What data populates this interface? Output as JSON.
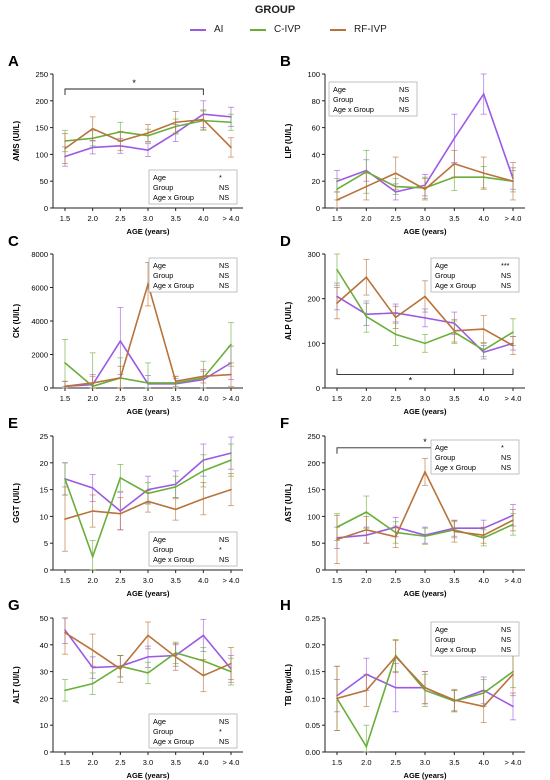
{
  "legend": {
    "title": "GROUP",
    "items": [
      {
        "label": "AI",
        "color": "#9b59e6"
      },
      {
        "label": "C-IVP",
        "color": "#6aae3a"
      },
      {
        "label": "RF-IVP",
        "color": "#b8733a"
      }
    ]
  },
  "chart_data": [
    {
      "panel": "A",
      "type": "line",
      "title": "",
      "xlabel": "AGE (years)",
      "ylabel": "AMS (UI/L)",
      "categories": [
        "1.5",
        "2.0",
        "2.5",
        "3.0",
        "3.5",
        "4.0",
        "> 4.0"
      ],
      "ylim": [
        0,
        250
      ],
      "yticks": [
        0,
        50,
        100,
        150,
        200,
        250
      ],
      "series": [
        {
          "name": "AI",
          "values": [
            96,
            113,
            116,
            108,
            140,
            175,
            170
          ],
          "err": [
            18,
            12,
            14,
            12,
            16,
            25,
            18
          ]
        },
        {
          "name": "C-IVP",
          "values": [
            125,
            130,
            142,
            135,
            152,
            163,
            160
          ],
          "err": [
            20,
            14,
            18,
            12,
            14,
            18,
            15
          ]
        },
        {
          "name": "RF-IVP",
          "values": [
            111,
            148,
            125,
            140,
            160,
            165,
            113
          ],
          "err": [
            28,
            22,
            18,
            16,
            20,
            18,
            18
          ]
        }
      ],
      "stats": [
        {
          "label": "Age",
          "value": "*"
        },
        {
          "label": "Group",
          "value": "NS"
        },
        {
          "label": "Age x Group",
          "value": "NS"
        }
      ],
      "stats_pos": "bottom-right",
      "brackets": [
        {
          "from": "1.5",
          "to": "4.0",
          "y": 222,
          "label": "*"
        }
      ]
    },
    {
      "panel": "B",
      "type": "line",
      "title": "",
      "xlabel": "AGE (years)",
      "ylabel": "LIP (UI/L)",
      "categories": [
        "1.5",
        "2.0",
        "2.5",
        "3.0",
        "3.5",
        "4.0",
        "> 4.0"
      ],
      "ylim": [
        0,
        100
      ],
      "yticks": [
        0,
        20,
        40,
        60,
        80,
        100
      ],
      "series": [
        {
          "name": "AI",
          "values": [
            20,
            28,
            12,
            17,
            52,
            85,
            22
          ],
          "err": [
            8,
            8,
            6,
            8,
            18,
            15,
            8
          ]
        },
        {
          "name": "C-IVP",
          "values": [
            14,
            27,
            16,
            15,
            23,
            23,
            20
          ],
          "err": [
            8,
            16,
            6,
            8,
            10,
            8,
            8
          ]
        },
        {
          "name": "RF-IVP",
          "values": [
            6,
            16,
            26,
            14,
            33,
            26,
            20
          ],
          "err": [
            6,
            10,
            12,
            8,
            10,
            12,
            14
          ]
        }
      ],
      "stats": [
        {
          "label": "Age",
          "value": "NS"
        },
        {
          "label": "Group",
          "value": "NS"
        },
        {
          "label": "Age x Group",
          "value": "NS"
        }
      ],
      "stats_pos": "top-left",
      "brackets": []
    },
    {
      "panel": "C",
      "type": "line",
      "title": "",
      "xlabel": "AGE (years)",
      "ylabel": "CK (UI/L)",
      "categories": [
        "1.5",
        "2.0",
        "2.5",
        "3.0",
        "3.5",
        "4.0",
        "> 4.0"
      ],
      "ylim": [
        0,
        8000
      ],
      "yticks": [
        0,
        2000,
        4000,
        6000,
        8000
      ],
      "series": [
        {
          "name": "AI",
          "values": [
            100,
            200,
            2800,
            250,
            250,
            500,
            1500
          ],
          "err": [
            300,
            600,
            2000,
            500,
            300,
            500,
            1000
          ]
        },
        {
          "name": "C-IVP",
          "values": [
            1500,
            100,
            600,
            300,
            300,
            600,
            2600
          ],
          "err": [
            1400,
            2000,
            1200,
            1200,
            400,
            1000,
            1300
          ]
        },
        {
          "name": "RF-IVP",
          "values": [
            100,
            300,
            600,
            6200,
            400,
            700,
            800
          ],
          "err": [
            300,
            400,
            700,
            1300,
            300,
            400,
            700
          ]
        }
      ],
      "stats": [
        {
          "label": "Age",
          "value": "NS"
        },
        {
          "label": "Group",
          "value": "NS"
        },
        {
          "label": "Age x Group",
          "value": "NS"
        }
      ],
      "stats_pos": "top-right",
      "brackets": []
    },
    {
      "panel": "D",
      "type": "line",
      "title": "",
      "xlabel": "AGE (years)",
      "ylabel": "ALP (UI/L)",
      "categories": [
        "1.5",
        "2.0",
        "2.5",
        "3.0",
        "3.5",
        "4.0",
        "> 4.0"
      ],
      "ylim": [
        0,
        300
      ],
      "yticks": [
        0,
        100,
        200,
        300
      ],
      "series": [
        {
          "name": "AI",
          "values": [
            205,
            165,
            168,
            157,
            145,
            80,
            100
          ],
          "err": [
            30,
            25,
            20,
            20,
            25,
            15,
            15
          ]
        },
        {
          "name": "C-IVP",
          "values": [
            265,
            160,
            120,
            100,
            125,
            85,
            125
          ],
          "err": [
            35,
            35,
            25,
            20,
            25,
            15,
            30
          ]
        },
        {
          "name": "RF-IVP",
          "values": [
            190,
            248,
            158,
            205,
            128,
            132,
            95
          ],
          "err": [
            35,
            40,
            25,
            35,
            25,
            30,
            20
          ]
        }
      ],
      "stats": [
        {
          "label": "Age",
          "value": "***"
        },
        {
          "label": "Group",
          "value": "NS"
        },
        {
          "label": "Age x Group",
          "value": "NS"
        }
      ],
      "stats_pos": "top-right",
      "brackets": [
        {
          "from": "1.5",
          "to": "4.0",
          "y": 30,
          "label": "*",
          "below": true
        },
        {
          "from": "3.5",
          "to": "> 4.0",
          "y": 30,
          "label": "",
          "below": true
        }
      ]
    },
    {
      "panel": "E",
      "type": "line",
      "title": "",
      "xlabel": "AGE (years)",
      "ylabel": "GGT (UI/L)",
      "categories": [
        "1.5",
        "2.0",
        "2.5",
        "3.0",
        "3.5",
        "4.0",
        "> 4.0"
      ],
      "ylim": [
        0,
        25
      ],
      "yticks": [
        0,
        5,
        10,
        15,
        20,
        25
      ],
      "series": [
        {
          "name": "AI",
          "values": [
            17,
            15.3,
            11,
            15,
            16,
            20.5,
            21.8
          ],
          "err": [
            3,
            2.5,
            3.5,
            2.5,
            2.5,
            3,
            3
          ]
        },
        {
          "name": "C-IVP",
          "values": [
            17,
            2.5,
            17.2,
            14.3,
            15.5,
            18.5,
            20.5
          ],
          "err": [
            3,
            3,
            2.5,
            2,
            2,
            3,
            3
          ]
        },
        {
          "name": "RF-IVP",
          "values": [
            9.5,
            11,
            10.5,
            12.8,
            11.3,
            13.3,
            15
          ],
          "err": [
            6,
            3,
            3,
            2,
            2,
            3,
            3
          ]
        }
      ],
      "stats": [
        {
          "label": "Age",
          "value": "NS"
        },
        {
          "label": "Group",
          "value": "*"
        },
        {
          "label": "Age x Group",
          "value": "NS"
        }
      ],
      "stats_pos": "bottom-right",
      "brackets": []
    },
    {
      "panel": "F",
      "type": "line",
      "title": "",
      "xlabel": "AGE (years)",
      "ylabel": "AST (UI/L)",
      "categories": [
        "1.5",
        "2.0",
        "2.5",
        "3.0",
        "3.5",
        "4.0",
        "> 4.0"
      ],
      "ylim": [
        0,
        250
      ],
      "yticks": [
        0,
        50,
        100,
        150,
        200,
        250
      ],
      "series": [
        {
          "name": "AI",
          "values": [
            60,
            65,
            80,
            65,
            78,
            78,
            102
          ],
          "err": [
            20,
            15,
            18,
            15,
            15,
            15,
            20
          ]
        },
        {
          "name": "C-IVP",
          "values": [
            80,
            108,
            70,
            63,
            75,
            60,
            85
          ],
          "err": [
            25,
            30,
            20,
            15,
            15,
            15,
            20
          ]
        },
        {
          "name": "RF-IVP",
          "values": [
            57,
            75,
            62,
            183,
            72,
            65,
            93
          ],
          "err": [
            45,
            25,
            20,
            25,
            20,
            15,
            20
          ]
        }
      ],
      "stats": [
        {
          "label": "Age",
          "value": "*"
        },
        {
          "label": "Group",
          "value": "NS"
        },
        {
          "label": "Age x Group",
          "value": "NS"
        }
      ],
      "stats_pos": "top-right",
      "brackets": [
        {
          "from": "1.5",
          "to": "> 4.0",
          "y": 228,
          "label": "*"
        }
      ]
    },
    {
      "panel": "G",
      "type": "line",
      "title": "",
      "xlabel": "AGE (years)",
      "ylabel": "ALT (UI/L)",
      "categories": [
        "1.5",
        "2.0",
        "2.5",
        "3.0",
        "3.5",
        "4.0",
        "> 4.0"
      ],
      "ylim": [
        0,
        50
      ],
      "yticks": [
        0,
        10,
        20,
        30,
        40,
        50
      ],
      "series": [
        {
          "name": "AI",
          "values": [
            45.5,
            31.5,
            32,
            35.5,
            36,
            43.5,
            31
          ],
          "err": [
            5,
            4,
            4,
            4,
            4,
            6,
            5
          ]
        },
        {
          "name": "C-IVP",
          "values": [
            23,
            25.5,
            32,
            29.5,
            37,
            34,
            30
          ],
          "err": [
            4,
            4,
            4,
            4,
            4,
            5,
            5
          ]
        },
        {
          "name": "RF-IVP",
          "values": [
            44.5,
            38,
            31,
            43.5,
            35.5,
            28.5,
            33
          ],
          "err": [
            8,
            6,
            5,
            5,
            5,
            6,
            6
          ]
        }
      ],
      "stats": [
        {
          "label": "Age",
          "value": "NS"
        },
        {
          "label": "Group",
          "value": "*"
        },
        {
          "label": "Age x Group",
          "value": "NS"
        }
      ],
      "stats_pos": "bottom-right",
      "brackets": []
    },
    {
      "panel": "H",
      "type": "line",
      "title": "",
      "xlabel": "AGE (years)",
      "ylabel": "TB (mg/dL)",
      "categories": [
        "1.5",
        "2.0",
        "2.5",
        "3.0",
        "3.5",
        "4.0",
        "> 4.0"
      ],
      "ylim": [
        0,
        0.25
      ],
      "yticks": [
        0,
        0.05,
        0.1,
        0.15,
        0.2,
        0.25
      ],
      "ytick_labels": [
        "0.00",
        "0.05",
        "0.10",
        "0.15",
        "0.20",
        "0.25"
      ],
      "series": [
        {
          "name": "AI",
          "values": [
            0.105,
            0.145,
            0.12,
            0.12,
            0.095,
            0.115,
            0.085
          ],
          "err": [
            0.03,
            0.03,
            0.045,
            0.03,
            0.02,
            0.025,
            0.025
          ]
        },
        {
          "name": "C-IVP",
          "values": [
            0.1,
            0.01,
            0.18,
            0.115,
            0.095,
            0.11,
            0.15
          ],
          "err": [
            0.06,
            0.04,
            0.03,
            0.03,
            0.02,
            0.025,
            0.03
          ]
        },
        {
          "name": "RF-IVP",
          "values": [
            0.1,
            0.115,
            0.178,
            0.12,
            0.097,
            0.085,
            0.145
          ],
          "err": [
            0.06,
            0.03,
            0.03,
            0.03,
            0.02,
            0.03,
            0.04
          ]
        }
      ],
      "stats": [
        {
          "label": "Age",
          "value": "NS"
        },
        {
          "label": "Group",
          "value": "NS"
        },
        {
          "label": "Age x Group",
          "value": "NS"
        }
      ],
      "stats_pos": "top-right",
      "brackets": []
    }
  ]
}
